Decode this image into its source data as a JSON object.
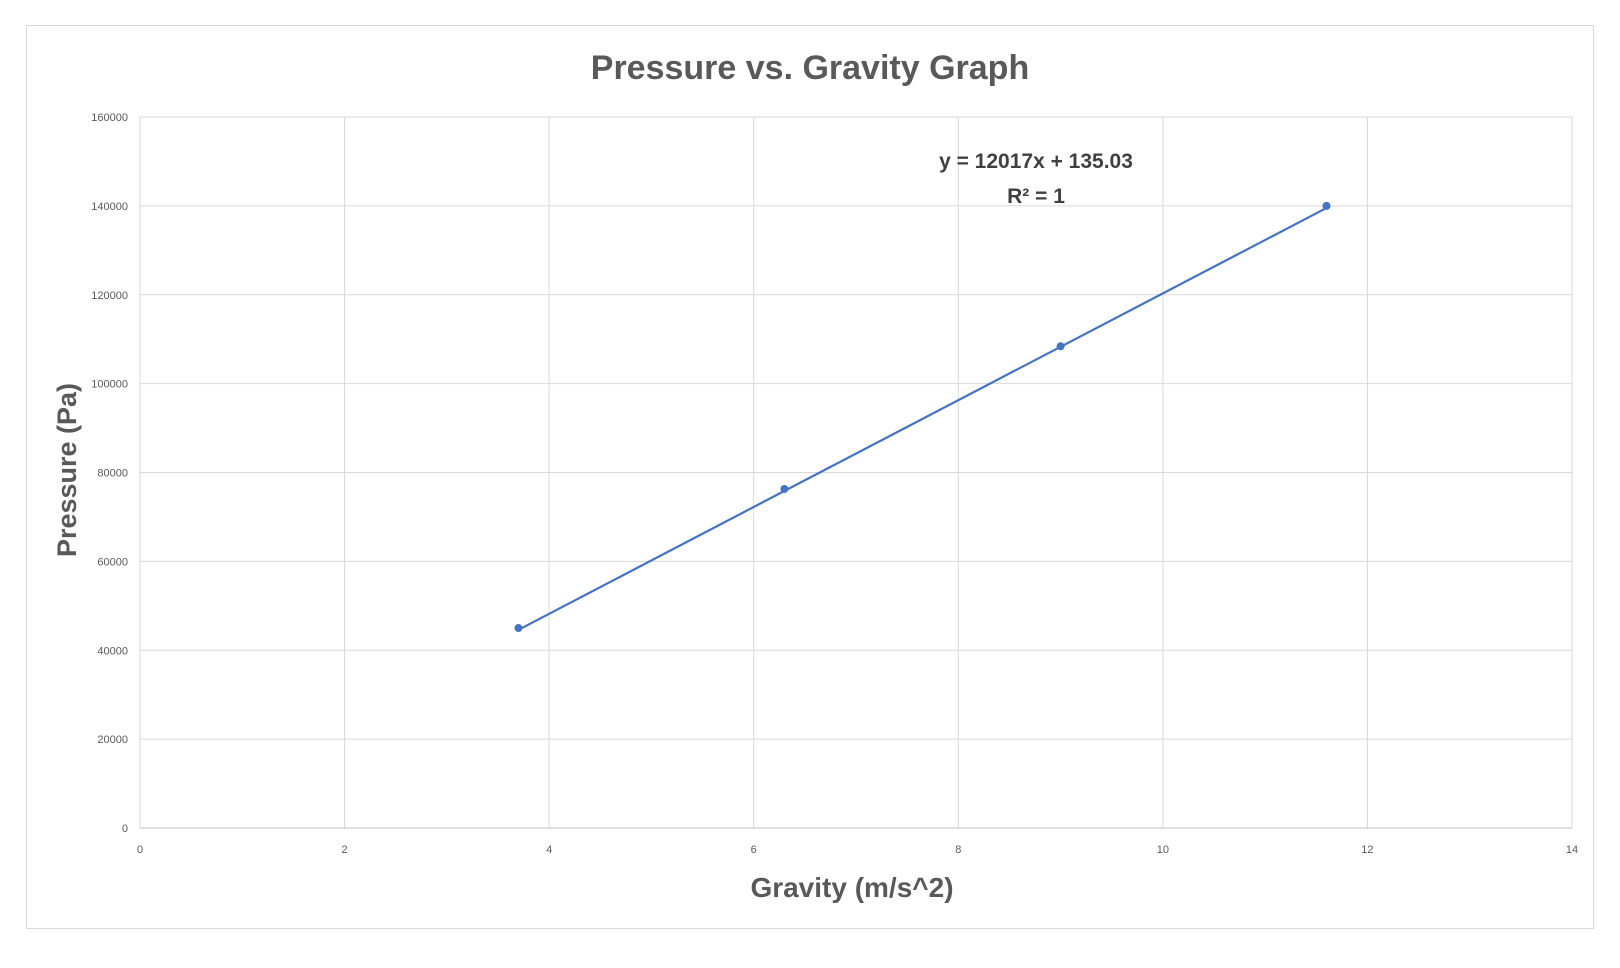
{
  "chart_data": {
    "type": "scatter",
    "title": "Pressure vs. Gravity Graph",
    "xlabel": "Gravity (m/s^2)",
    "ylabel": "Pressure (Pa)",
    "xlim": [
      0,
      14
    ],
    "ylim": [
      0,
      160000
    ],
    "x_ticks": [
      "0",
      "2",
      "4",
      "6",
      "8",
      "10",
      "12",
      "14"
    ],
    "y_ticks": [
      "0",
      "20000",
      "40000",
      "60000",
      "80000",
      "100000",
      "120000",
      "140000",
      "160000"
    ],
    "grid": true,
    "series": [
      {
        "x": [
          3.7,
          6.3,
          9.0,
          11.6
        ],
        "y": [
          45000,
          76300,
          108400,
          140000
        ],
        "color": "#4472c4"
      }
    ],
    "trendline": {
      "slope": 12017,
      "intercept": 135.03,
      "equation": "y = 12017x + 135.03",
      "r_squared": "R² = 1",
      "color": "#4472c4"
    }
  }
}
